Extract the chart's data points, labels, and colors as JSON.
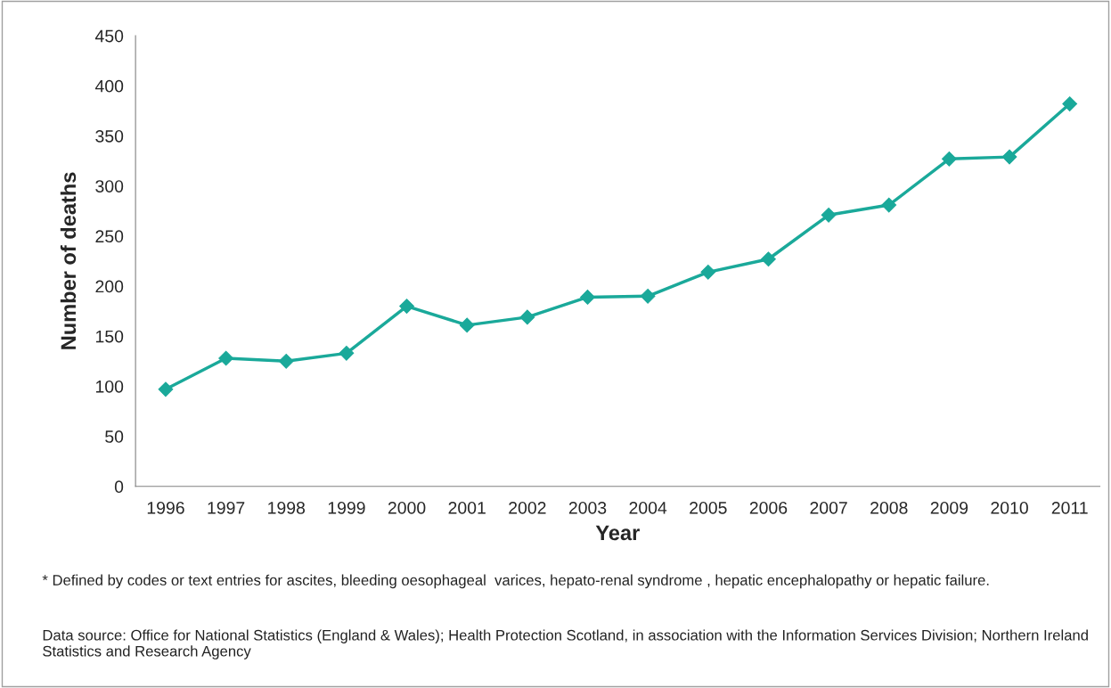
{
  "chart_data": {
    "type": "line",
    "xlabel": "Year",
    "ylabel": "Number of deaths",
    "categories": [
      "1996",
      "1997",
      "1998",
      "1999",
      "2000",
      "2001",
      "2002",
      "2003",
      "2004",
      "2005",
      "2006",
      "2007",
      "2008",
      "2009",
      "2010",
      "2011"
    ],
    "series": [
      {
        "color": "#1aa99a",
        "values": [
          97,
          128,
          125,
          133,
          180,
          161,
          169,
          189,
          190,
          214,
          227,
          271,
          281,
          327,
          329,
          382
        ]
      }
    ],
    "ylim": [
      0,
      450
    ],
    "yticks": [
      0,
      50,
      100,
      150,
      200,
      250,
      300,
      350,
      400,
      450
    ],
    "marker": "diamond",
    "line_style": "solid",
    "grid": false,
    "legend": false,
    "annotations": [
      "* Defined by codes or text entries for ascites, bleeding oesophageal  varices, hepato-renal syndrome , hepatic encephalopathy or hepatic failure.",
      "Data source: Office for National Statistics (England & Wales); Health Protection Scotland, in association with the Information Services Division; Northern Ireland Statistics and Research Agency"
    ]
  }
}
